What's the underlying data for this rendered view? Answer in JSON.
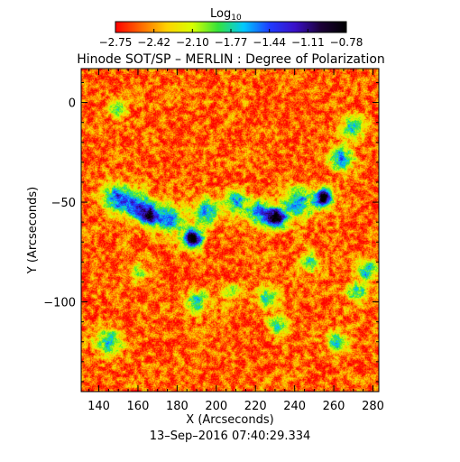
{
  "colorbar": {
    "label_main": "Log",
    "label_sub": "10",
    "tick_labels": [
      "−2.75",
      "−2.42",
      "−2.10",
      "−1.77",
      "−1.44",
      "−1.11",
      "−0.78"
    ],
    "stops": [
      "#ff0000",
      "#ff6a00",
      "#ffd200",
      "#d8ff00",
      "#34e33c",
      "#00c8ff",
      "#1f3cff",
      "#3a10c8",
      "#1c0038",
      "#000000"
    ]
  },
  "chart_data": {
    "type": "heatmap",
    "title": "Hinode SOT/SP – MERLIN : Degree of Polarization",
    "subtitle": "13–Sep–2016 07:40:29.334",
    "xlabel": "X (Arcseconds)",
    "ylabel": "Y (Arcseconds)",
    "xlim": [
      131,
      283
    ],
    "ylim": [
      -145,
      17
    ],
    "xticks": [
      140,
      160,
      180,
      200,
      220,
      240,
      260,
      280
    ],
    "xtick_labels": [
      "140",
      "160",
      "180",
      "200",
      "220",
      "240",
      "260",
      "280"
    ],
    "yticks": [
      0,
      -50,
      -100
    ],
    "ytick_labels": [
      "0",
      "−50",
      "−100"
    ],
    "zlim": [
      -2.75,
      -0.78
    ],
    "zlabel": "Log10",
    "zscale": "log10",
    "background_level": -2.55,
    "features": [
      {
        "x": 255,
        "y": -48,
        "sigma": 3.2,
        "amp": 1.8
      },
      {
        "x": 231,
        "y": -58,
        "sigma": 3.5,
        "amp": 1.75
      },
      {
        "x": 188,
        "y": -68,
        "sigma": 3.5,
        "amp": 1.8
      },
      {
        "x": 166,
        "y": -57,
        "sigma": 3.5,
        "amp": 1.15
      },
      {
        "x": 149,
        "y": -48,
        "sigma": 5.0,
        "amp": 1.1
      },
      {
        "x": 160,
        "y": -52,
        "sigma": 5.0,
        "amp": 1.1
      },
      {
        "x": 176,
        "y": -58,
        "sigma": 5.0,
        "amp": 1.05
      },
      {
        "x": 195,
        "y": -55,
        "sigma": 4.5,
        "amp": 1.0
      },
      {
        "x": 210,
        "y": -50,
        "sigma": 4.0,
        "amp": 0.95
      },
      {
        "x": 222,
        "y": -55,
        "sigma": 4.5,
        "amp": 1.0
      },
      {
        "x": 242,
        "y": -50,
        "sigma": 5.5,
        "amp": 0.95
      },
      {
        "x": 264,
        "y": -28,
        "sigma": 4.5,
        "amp": 0.95
      },
      {
        "x": 270,
        "y": -12,
        "sigma": 4.0,
        "amp": 0.85
      },
      {
        "x": 277,
        "y": -84,
        "sigma": 3.5,
        "amp": 0.95
      },
      {
        "x": 272,
        "y": -95,
        "sigma": 3.5,
        "amp": 0.9
      },
      {
        "x": 150,
        "y": -3,
        "sigma": 3.0,
        "amp": 0.85
      },
      {
        "x": 145,
        "y": -120,
        "sigma": 5.0,
        "amp": 0.8
      },
      {
        "x": 190,
        "y": -100,
        "sigma": 4.0,
        "amp": 0.8
      },
      {
        "x": 226,
        "y": -98,
        "sigma": 4.0,
        "amp": 0.75
      },
      {
        "x": 232,
        "y": -112,
        "sigma": 3.5,
        "amp": 0.8
      },
      {
        "x": 262,
        "y": -120,
        "sigma": 4.0,
        "amp": 0.8
      },
      {
        "x": 208,
        "y": -95,
        "sigma": 3.0,
        "amp": 0.7
      },
      {
        "x": 248,
        "y": -80,
        "sigma": 3.5,
        "amp": 0.7
      },
      {
        "x": 160,
        "y": -85,
        "sigma": 3.0,
        "amp": 0.6
      }
    ]
  }
}
